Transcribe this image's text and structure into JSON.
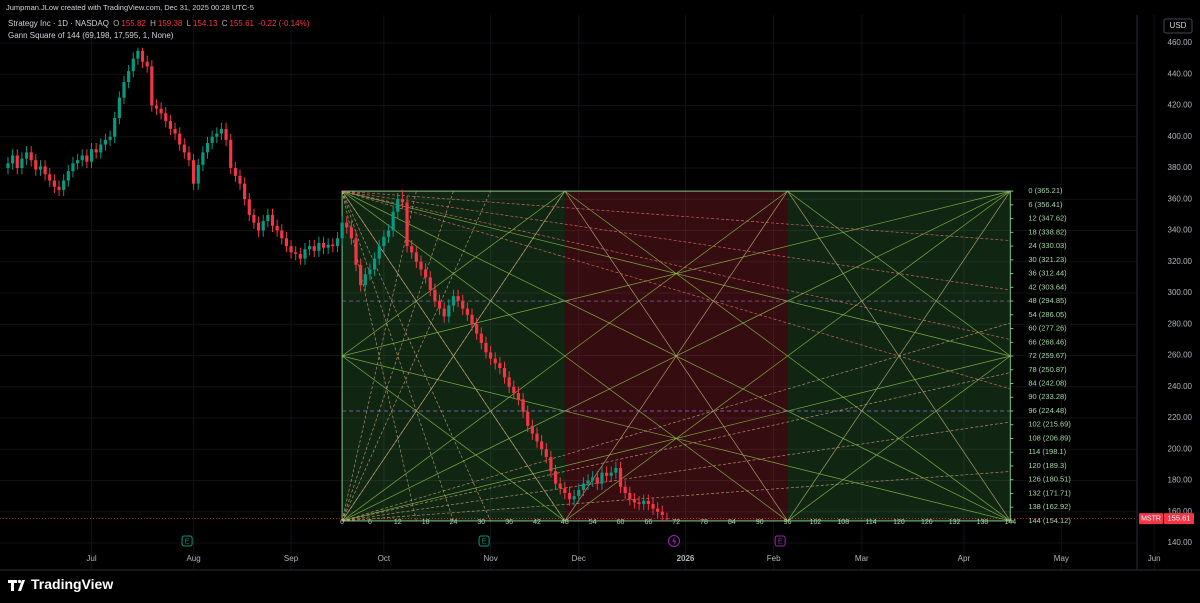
{
  "header": {
    "caption": "Jumpman.JLow created with TradingView.com, Dec 31, 2025 00:28 UTC-5",
    "currency": "USD",
    "brand": "TradingView"
  },
  "chart_data": {
    "type": "candlestick",
    "symbol": "MSTR",
    "legend": {
      "name": "Strategy Inc · 1D · NASDAQ",
      "ohlc_labels": [
        "O",
        "H",
        "L",
        "C"
      ],
      "change": "-0.22 (-0.14%)"
    },
    "up_color": "#089981",
    "down_color": "#f23645",
    "open": [
      380,
      383,
      388,
      380,
      386,
      390,
      385,
      379,
      381,
      376,
      372,
      368,
      366,
      372,
      378,
      383,
      385,
      388,
      384,
      392,
      390,
      395,
      398,
      400,
      412,
      425,
      435,
      442,
      450,
      455,
      448,
      445,
      420,
      418,
      415,
      410,
      405,
      402,
      395,
      390,
      385,
      370,
      382,
      390,
      396,
      400,
      402,
      405,
      398,
      380,
      375,
      370,
      360,
      350,
      345,
      340,
      346,
      350,
      343,
      340,
      335,
      330,
      326,
      325,
      322,
      328,
      330,
      327,
      332,
      329,
      331,
      330,
      335,
      345,
      342,
      335,
      318,
      305,
      312,
      315,
      322,
      330,
      336,
      340,
      352,
      360,
      358,
      330,
      326,
      320,
      315,
      310,
      302,
      295,
      290,
      285,
      292,
      298,
      295,
      290,
      286,
      280,
      274,
      268,
      262,
      258,
      255,
      252,
      246,
      240,
      236,
      232,
      224,
      215,
      210,
      205,
      200,
      195,
      186,
      178,
      175,
      172,
      168,
      170,
      174,
      178,
      180,
      182,
      178,
      185,
      183,
      185,
      188,
      176,
      172,
      168,
      166,
      165,
      167,
      165,
      162,
      160,
      155.82
    ],
    "high": [
      387,
      392,
      392,
      390,
      394,
      394,
      389,
      385,
      385,
      380,
      376,
      372,
      376,
      382,
      387,
      389,
      392,
      392,
      396,
      396,
      399,
      402,
      404,
      416,
      429,
      439,
      446,
      454,
      457,
      457,
      452,
      449,
      424,
      422,
      419,
      414,
      409,
      406,
      399,
      394,
      389,
      386,
      394,
      400,
      404,
      406,
      409,
      409,
      402,
      384,
      379,
      374,
      364,
      354,
      349,
      350,
      354,
      354,
      347,
      344,
      339,
      334,
      330,
      329,
      332,
      334,
      334,
      336,
      336,
      335,
      335,
      339,
      349,
      349,
      346,
      339,
      322,
      316,
      319,
      326,
      334,
      340,
      344,
      356,
      364,
      366,
      362,
      334,
      330,
      324,
      319,
      314,
      306,
      299,
      294,
      296,
      302,
      302,
      299,
      294,
      290,
      284,
      278,
      272,
      266,
      262,
      259,
      256,
      250,
      244,
      240,
      236,
      228,
      219,
      214,
      209,
      204,
      199,
      190,
      182,
      179,
      176,
      174,
      178,
      182,
      184,
      186,
      186,
      189,
      189,
      189,
      192,
      192,
      180,
      176,
      172,
      170,
      171,
      171,
      169,
      166,
      164,
      159.38
    ],
    "low": [
      376,
      379,
      376,
      376,
      382,
      381,
      375,
      375,
      372,
      368,
      364,
      362,
      362,
      368,
      374,
      379,
      381,
      380,
      380,
      386,
      386,
      391,
      394,
      396,
      408,
      421,
      431,
      438,
      446,
      444,
      441,
      416,
      414,
      411,
      406,
      401,
      398,
      391,
      386,
      381,
      366,
      366,
      378,
      386,
      392,
      396,
      398,
      394,
      376,
      371,
      366,
      356,
      346,
      341,
      336,
      336,
      342,
      339,
      336,
      331,
      326,
      322,
      321,
      318,
      318,
      324,
      323,
      323,
      325,
      325,
      326,
      326,
      331,
      338,
      331,
      314,
      301,
      301,
      308,
      311,
      318,
      326,
      332,
      336,
      348,
      354,
      326,
      322,
      316,
      311,
      306,
      298,
      291,
      286,
      281,
      281,
      288,
      291,
      286,
      282,
      276,
      270,
      264,
      258,
      254,
      251,
      248,
      242,
      236,
      232,
      228,
      220,
      211,
      206,
      201,
      196,
      191,
      182,
      174,
      171,
      168,
      164,
      164,
      166,
      170,
      174,
      176,
      174,
      174,
      179,
      179,
      181,
      172,
      168,
      164,
      162,
      161,
      161,
      161,
      158,
      156,
      154,
      154.13
    ],
    "close": [
      383,
      388,
      380,
      386,
      390,
      385,
      379,
      381,
      376,
      372,
      368,
      366,
      372,
      378,
      383,
      385,
      388,
      384,
      392,
      390,
      395,
      398,
      400,
      412,
      425,
      435,
      442,
      450,
      455,
      448,
      445,
      420,
      418,
      415,
      410,
      405,
      402,
      395,
      390,
      385,
      370,
      382,
      390,
      396,
      400,
      402,
      405,
      398,
      380,
      375,
      370,
      360,
      350,
      345,
      340,
      346,
      350,
      343,
      340,
      335,
      330,
      326,
      325,
      322,
      328,
      330,
      327,
      332,
      329,
      331,
      330,
      335,
      345,
      342,
      335,
      318,
      305,
      312,
      315,
      322,
      330,
      336,
      340,
      352,
      360,
      358,
      330,
      326,
      320,
      315,
      310,
      302,
      295,
      290,
      285,
      292,
      298,
      295,
      290,
      286,
      280,
      274,
      268,
      262,
      258,
      255,
      252,
      246,
      240,
      236,
      232,
      224,
      215,
      210,
      205,
      200,
      195,
      186,
      178,
      175,
      172,
      168,
      170,
      174,
      178,
      180,
      182,
      178,
      185,
      183,
      185,
      188,
      176,
      172,
      168,
      166,
      165,
      167,
      165,
      162,
      160,
      158,
      155.61
    ],
    "xlim": [
      -1.72,
      243.3
    ],
    "xticks": [
      {
        "value": 18,
        "label": "Jul"
      },
      {
        "value": 40,
        "label": "Aug"
      },
      {
        "value": 61,
        "label": "Sep"
      },
      {
        "value": 81,
        "label": "Oct"
      },
      {
        "value": 104,
        "label": "Nov"
      },
      {
        "value": 123,
        "label": "Dec"
      },
      {
        "value": 146,
        "label": "2026"
      },
      {
        "value": 165,
        "label": "Feb"
      },
      {
        "value": 184,
        "label": "Mar"
      },
      {
        "value": 206,
        "label": "Apr"
      },
      {
        "value": 227,
        "label": "May"
      },
      {
        "value": 247,
        "label": "Jun"
      }
    ],
    "ylim": [
      122.72,
      477.92
    ],
    "yticks": [
      {
        "value": 140,
        "label": "140.00"
      },
      {
        "value": 160,
        "label": "160.00"
      },
      {
        "value": 180,
        "label": "180.00"
      },
      {
        "value": 200,
        "label": "200.00"
      },
      {
        "value": 220,
        "label": "220.00"
      },
      {
        "value": 240,
        "label": "240.00"
      },
      {
        "value": 260,
        "label": "260.00"
      },
      {
        "value": 280,
        "label": "280.00"
      },
      {
        "value": 300,
        "label": "300.00"
      },
      {
        "value": 320,
        "label": "320.00"
      },
      {
        "value": 340,
        "label": "340.00"
      },
      {
        "value": 360,
        "label": "360.00"
      },
      {
        "value": 380,
        "label": "380.00"
      },
      {
        "value": 400,
        "label": "400.00"
      },
      {
        "value": 420,
        "label": "420.00"
      },
      {
        "value": 440,
        "label": "440.00"
      },
      {
        "value": 460,
        "label": "460.00"
      }
    ],
    "grid": true,
    "events": [
      {
        "label": "E",
        "index": 38.6,
        "color": "#089981"
      },
      {
        "label": "E",
        "index": 102.6,
        "color": "#089981"
      },
      {
        "label": "E",
        "index": 166.4,
        "color": "#9c27b0"
      }
    ],
    "gann": {
      "title": "Gann Square of 144 (69,198, 17,595, 1, None)",
      "start": 72,
      "end": 216,
      "levels": [
        {
          "value": 365.21,
          "label": "0 (365.21)"
        },
        {
          "value": 356.41,
          "label": "6 (356.41)"
        },
        {
          "value": 347.62,
          "label": "12 (347.62)"
        },
        {
          "value": 338.82,
          "label": "18 (338.82)"
        },
        {
          "value": 330.03,
          "label": "24 (330.03)"
        },
        {
          "value": 321.23,
          "label": "30 (321.23)"
        },
        {
          "value": 312.44,
          "label": "36 (312.44)"
        },
        {
          "value": 303.64,
          "label": "42 (303.64)"
        },
        {
          "value": 294.85,
          "label": "48 (294.85)"
        },
        {
          "value": 286.05,
          "label": "54 (286.05)"
        },
        {
          "value": 277.26,
          "label": "60 (277.26)"
        },
        {
          "value": 268.46,
          "label": "66 (268.46)"
        },
        {
          "value": 259.67,
          "label": "72 (259.67)"
        },
        {
          "value": 250.87,
          "label": "78 (250.87)"
        },
        {
          "value": 242.08,
          "label": "84 (242.08)"
        },
        {
          "value": 233.28,
          "label": "90 (233.28)"
        },
        {
          "value": 224.48,
          "label": "96 (224.48)"
        },
        {
          "value": 215.69,
          "label": "102 (215.69)"
        },
        {
          "value": 206.89,
          "label": "108 (206.89)"
        },
        {
          "value": 198.1,
          "label": "114 (198.1)"
        },
        {
          "value": 189.3,
          "label": "120 (189.3)"
        },
        {
          "value": 180.51,
          "label": "126 (180.51)"
        },
        {
          "value": 171.71,
          "label": "132 (171.71)"
        },
        {
          "value": 162.92,
          "label": "138 (162.92)"
        },
        {
          "value": 154.12,
          "label": "144 (154.12)"
        }
      ],
      "time_levels": [
        0,
        6,
        12,
        18,
        24,
        30,
        36,
        42,
        48,
        54,
        60,
        66,
        72,
        78,
        84,
        90,
        96,
        102,
        108,
        114,
        120,
        126,
        132,
        138,
        144
      ]
    }
  }
}
